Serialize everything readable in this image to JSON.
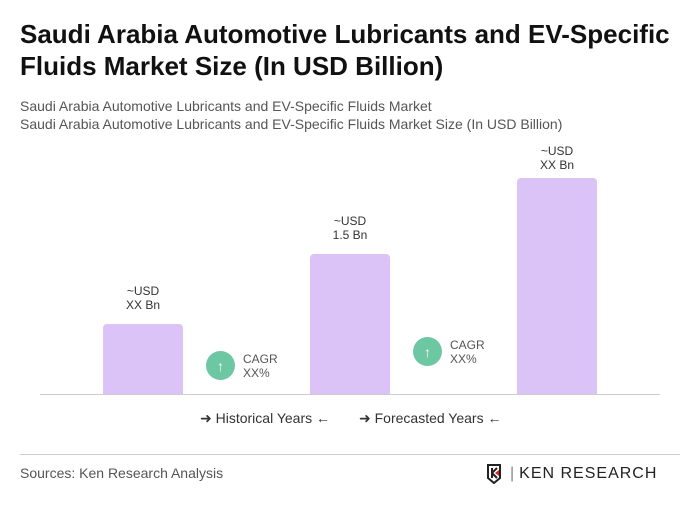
{
  "title": "Saudi Arabia Automotive Lubricants and EV-Specific Fluids Market Size (In USD Billion)",
  "subtitle1": "Saudi Arabia Automotive Lubricants and EV-Specific Fluids Market",
  "subtitle2": "Saudi Arabia Automotive Lubricants and EV-Specific Fluids Market Size (In USD Billion)",
  "chart_data": {
    "type": "bar",
    "categories": [
      "",
      "",
      ""
    ],
    "values": [
      null,
      1.5,
      null
    ],
    "data_labels": [
      {
        "l1": "~USD",
        "l2": "XX Bn"
      },
      {
        "l1": "~USD",
        "l2": "1.5 Bn"
      },
      {
        "l1": "~USD",
        "l2": "XX Bn"
      }
    ],
    "bar_color": "#dcc3f7",
    "cagr": [
      {
        "l1": "CAGR",
        "l2": "XX%"
      },
      {
        "l1": "CAGR",
        "l2": "XX%"
      }
    ],
    "cagr_icon": "arrow-up-icon",
    "cagr_color": "#6cc7a2",
    "legend": [
      "Historical Years",
      "Forecasted Years"
    ]
  },
  "source": "Sources: Ken Research Analysis",
  "logo": "KEN RESEARCH"
}
